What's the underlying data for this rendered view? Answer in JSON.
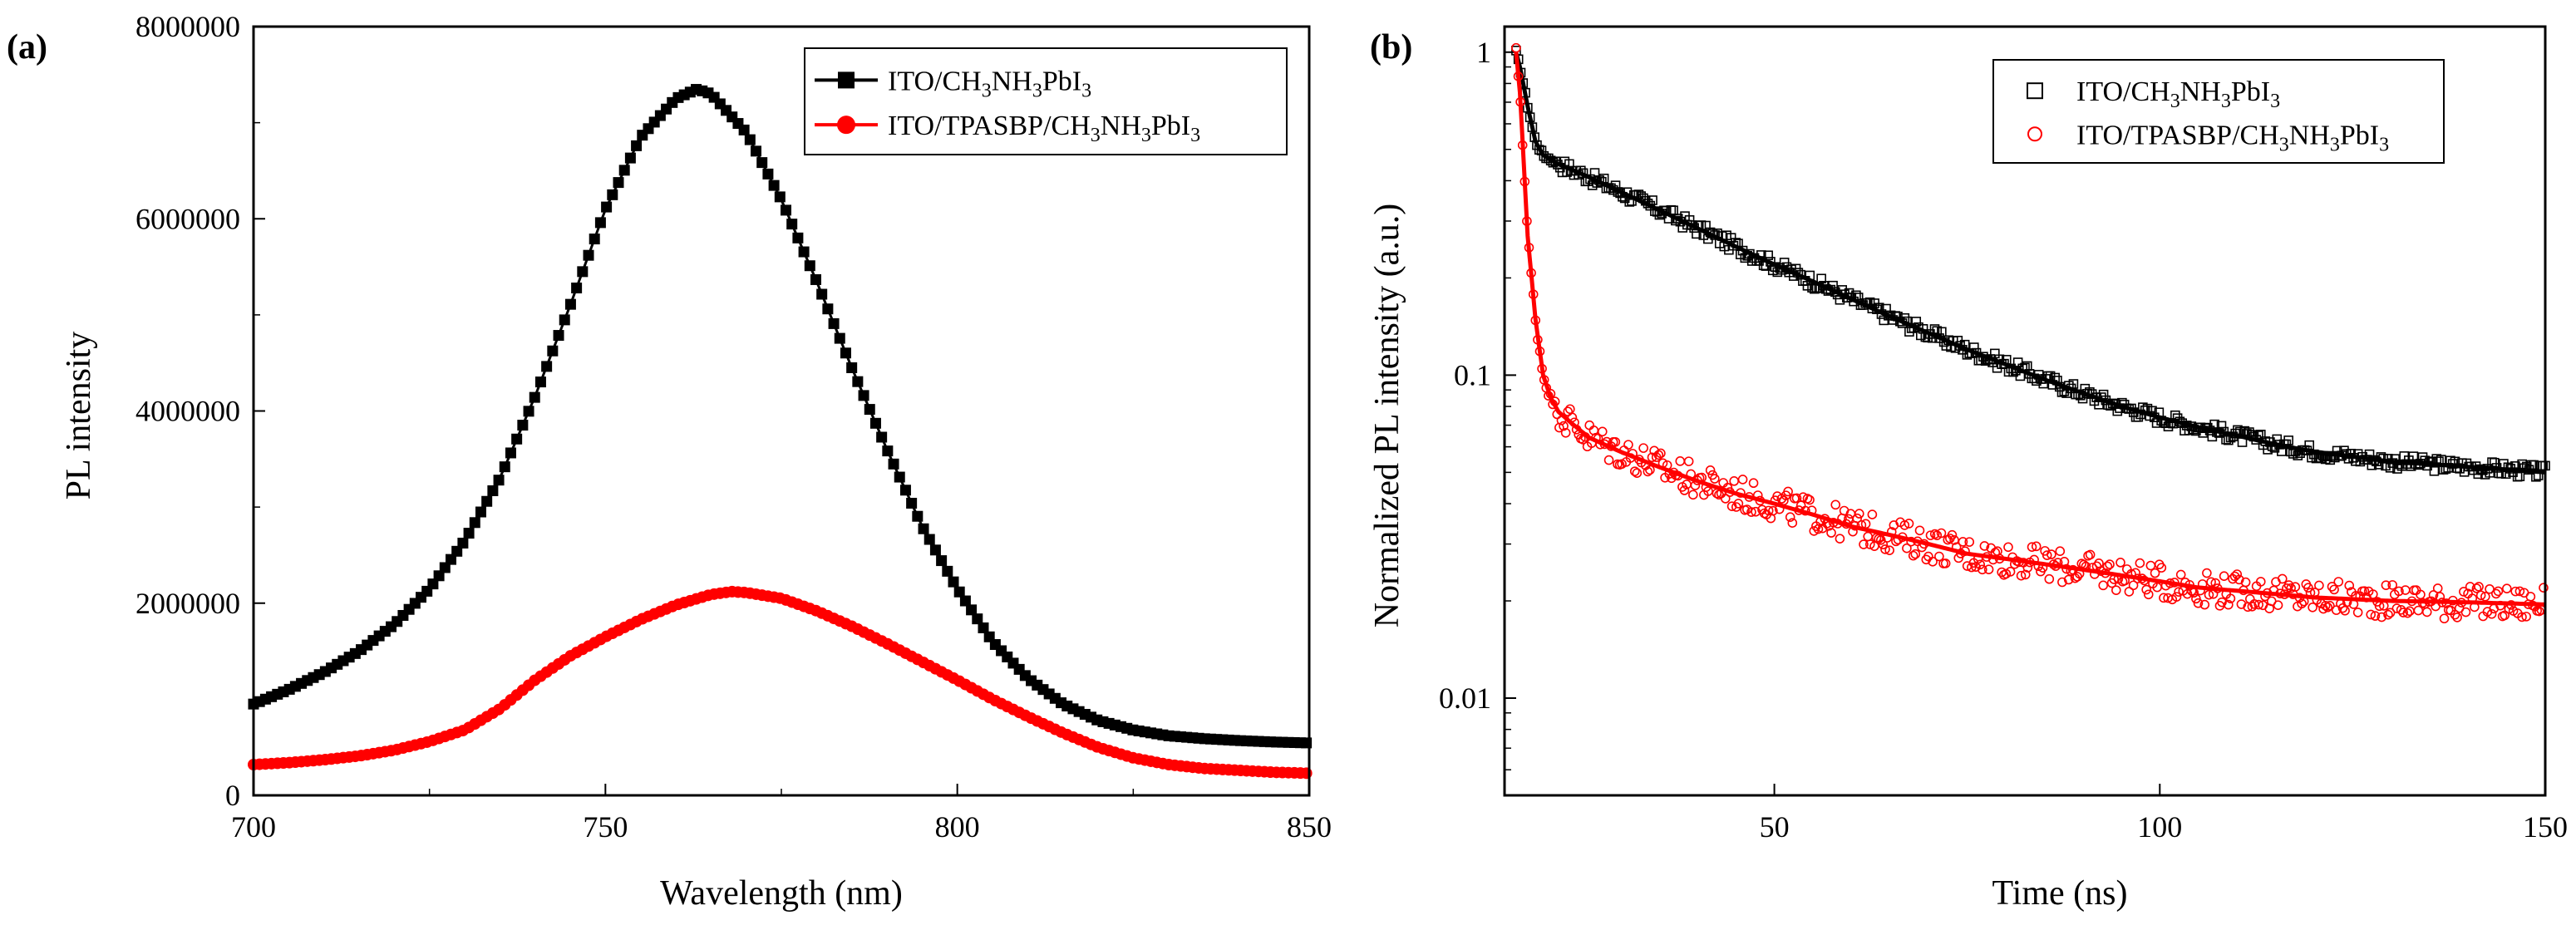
{
  "chart_data": [
    {
      "panel": "(a)",
      "type": "line",
      "xlabel": "Wavelength (nm)",
      "ylabel": "PL intensity",
      "xlim": [
        700,
        850
      ],
      "ylim": [
        0,
        8000000
      ],
      "xticks": [
        700,
        750,
        800,
        850
      ],
      "yticks": [
        0,
        2000000,
        4000000,
        6000000,
        8000000
      ],
      "tick_labels_x": [
        "700",
        "750",
        "800",
        "850"
      ],
      "tick_labels_y": [
        "0",
        "2000000",
        "4000000",
        "6000000",
        "8000000"
      ],
      "legend_position": "top-right",
      "grid": false,
      "series": [
        {
          "name": "ITO/CH3NH3PbI3",
          "legend_parts": [
            [
              "ITO/CH",
              ""
            ],
            [
              "3",
              "sub"
            ],
            [
              "NH",
              ""
            ],
            [
              "3",
              "sub"
            ],
            [
              "PbI",
              ""
            ],
            [
              "3",
              "sub"
            ]
          ],
          "color": "#000000",
          "marker": "square",
          "x": [
            700,
            705,
            710,
            715,
            720,
            725,
            730,
            735,
            740,
            745,
            750,
            755,
            760,
            763,
            765,
            770,
            775,
            780,
            785,
            790,
            795,
            800,
            805,
            810,
            815,
            820,
            825,
            830,
            835,
            840,
            845,
            850
          ],
          "y": [
            950000,
            1100000,
            1280000,
            1500000,
            1780000,
            2150000,
            2650000,
            3300000,
            4150000,
            5100000,
            6100000,
            6850000,
            7250000,
            7350000,
            7300000,
            6900000,
            6200000,
            5350000,
            4450000,
            3600000,
            2800000,
            2150000,
            1600000,
            1220000,
            950000,
            780000,
            680000,
            620000,
            590000,
            570000,
            555000,
            545000
          ]
        },
        {
          "name": "ITO/TPASBP/CH3NH3PbI3",
          "legend_parts": [
            [
              "ITO/TPASBP/CH",
              ""
            ],
            [
              "3",
              "sub"
            ],
            [
              "NH",
              ""
            ],
            [
              "3",
              "sub"
            ],
            [
              "PbI",
              ""
            ],
            [
              "3",
              "sub"
            ]
          ],
          "color": "#ff0000",
          "marker": "circle",
          "x": [
            700,
            705,
            710,
            715,
            720,
            725,
            730,
            735,
            740,
            745,
            750,
            755,
            760,
            765,
            768,
            770,
            775,
            780,
            785,
            790,
            795,
            800,
            805,
            810,
            815,
            820,
            825,
            830,
            835,
            840,
            845,
            850
          ],
          "y": [
            320000,
            340000,
            370000,
            410000,
            470000,
            560000,
            680000,
            900000,
            1200000,
            1450000,
            1650000,
            1830000,
            1980000,
            2090000,
            2120000,
            2110000,
            2050000,
            1920000,
            1760000,
            1580000,
            1390000,
            1200000,
            1000000,
            820000,
            650000,
            500000,
            390000,
            320000,
            280000,
            260000,
            240000,
            230000
          ]
        }
      ]
    },
    {
      "panel": "(b)",
      "type": "scatter",
      "yscale": "log",
      "xlabel": "Time (ns)",
      "ylabel": "Normalized PL intensity (a.u.)",
      "xlim": [
        15,
        150
      ],
      "ylim": [
        0.005,
        1.2
      ],
      "xticks": [
        50,
        100,
        150
      ],
      "yticks": [
        0.01,
        0.1,
        1
      ],
      "tick_labels_x": [
        "50",
        "100",
        "150"
      ],
      "tick_labels_y": [
        "0.01",
        "0.1",
        "1"
      ],
      "legend_position": "top-right",
      "grid": false,
      "series": [
        {
          "name": "ITO/CH3NH3PbI3",
          "legend_parts": [
            [
              "ITO/CH",
              ""
            ],
            [
              "3",
              "sub"
            ],
            [
              "NH",
              ""
            ],
            [
              "3",
              "sub"
            ],
            [
              "PbI",
              ""
            ],
            [
              "3",
              "sub"
            ]
          ],
          "color": "#000000",
          "marker": "open-square",
          "fit": "bi-exponential decay",
          "x": [
            16.5,
            17,
            18,
            19,
            20,
            22,
            25,
            30,
            35,
            40,
            45,
            50,
            55,
            60,
            65,
            70,
            75,
            80,
            85,
            90,
            95,
            100,
            105,
            110,
            115,
            120,
            125,
            130,
            135,
            140,
            145,
            150
          ],
          "y": [
            1.0,
            0.9,
            0.68,
            0.53,
            0.48,
            0.45,
            0.42,
            0.37,
            0.325,
            0.285,
            0.25,
            0.22,
            0.195,
            0.172,
            0.152,
            0.135,
            0.12,
            0.108,
            0.097,
            0.088,
            0.08,
            0.074,
            0.069,
            0.065,
            0.061,
            0.058,
            0.056,
            0.054,
            0.053,
            0.052,
            0.051,
            0.05
          ]
        },
        {
          "name": "ITO/TPASBP/CH3NH3PbI3",
          "legend_parts": [
            [
              "ITO/TPASBP/CH",
              ""
            ],
            [
              "3",
              "sub"
            ],
            [
              "NH",
              ""
            ],
            [
              "3",
              "sub"
            ],
            [
              "PbI",
              ""
            ],
            [
              "3",
              "sub"
            ]
          ],
          "color": "#ff0000",
          "marker": "open-circle",
          "fit": "bi-exponential decay",
          "x": [
            16.5,
            17,
            17.5,
            18,
            19,
            20,
            21,
            22,
            24,
            26,
            30,
            35,
            40,
            45,
            50,
            55,
            60,
            65,
            70,
            75,
            80,
            85,
            90,
            95,
            100,
            105,
            110,
            115,
            120,
            130,
            140,
            150
          ],
          "y": [
            1.0,
            0.75,
            0.45,
            0.27,
            0.15,
            0.1,
            0.085,
            0.077,
            0.07,
            0.064,
            0.058,
            0.052,
            0.047,
            0.043,
            0.04,
            0.037,
            0.034,
            0.032,
            0.03,
            0.028,
            0.027,
            0.026,
            0.025,
            0.024,
            0.023,
            0.022,
            0.0215,
            0.021,
            0.0205,
            0.02,
            0.0198,
            0.0195
          ]
        }
      ]
    }
  ]
}
